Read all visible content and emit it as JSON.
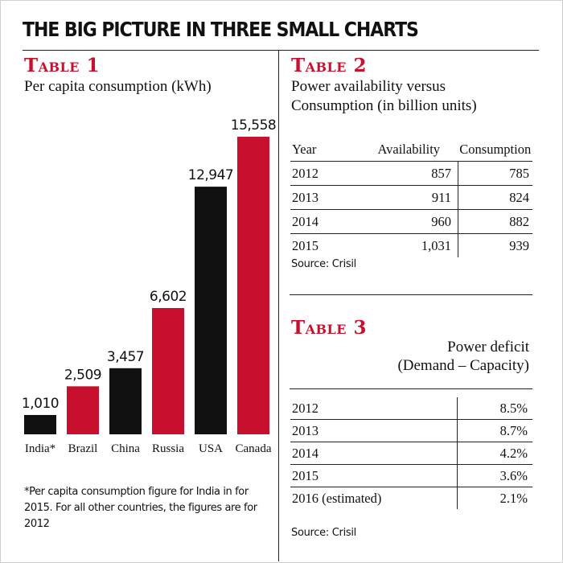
{
  "header": {
    "title": "THE BIG PICTURE IN THREE SMALL CHARTS"
  },
  "table1": {
    "heading": "Table 1",
    "subtitle": "Per capita consumption (kWh)",
    "footnote": "*Per capita consumption figure for India in for 2015. For all other countries, the figures are for 2012"
  },
  "chart_data": {
    "type": "bar",
    "title": "Per capita consumption (kWh)",
    "categories": [
      "India*",
      "Brazil",
      "China",
      "Russia",
      "USA",
      "Canada"
    ],
    "values": [
      1010,
      2509,
      3457,
      6602,
      12947,
      15558
    ],
    "value_labels": [
      "1,010",
      "2,509",
      "3,457",
      "6,602",
      "12,947",
      "15,558"
    ],
    "colors": [
      "#111111",
      "#c8102e",
      "#111111",
      "#c8102e",
      "#111111",
      "#c8102e"
    ],
    "ylim": [
      0,
      15558
    ],
    "grid": false,
    "xlabel": "",
    "ylabel": ""
  },
  "table2": {
    "heading": "Table 2",
    "subtitle_line1": "Power availability versus",
    "subtitle_line2": "Consumption (in billion units)",
    "columns": [
      "Year",
      "Availability",
      "Consumption"
    ],
    "rows": [
      [
        "2012",
        "857",
        "785"
      ],
      [
        "2013",
        "911",
        "824"
      ],
      [
        "2014",
        "960",
        "882"
      ],
      [
        "2015",
        "1,031",
        "939"
      ]
    ],
    "source": "Source: Crisil"
  },
  "table3": {
    "heading": "Table 3",
    "subtitle_line1": "Power deficit",
    "subtitle_line2": "(Demand – Capacity)",
    "rows": [
      [
        "2012",
        "8.5%"
      ],
      [
        "2013",
        "8.7%"
      ],
      [
        "2014",
        "4.2%"
      ],
      [
        "2015",
        "3.6%"
      ],
      [
        "2016 (estimated)",
        "2.1%"
      ]
    ],
    "source": "Source: Crisil"
  }
}
